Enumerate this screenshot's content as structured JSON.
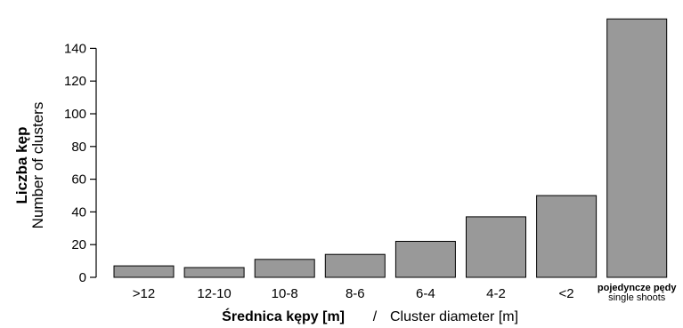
{
  "chart_data": {
    "type": "bar",
    "categories": [
      ">12",
      "12-10",
      "10-8",
      "8-6",
      "6-4",
      "4-2",
      "<2",
      "pojedyncze pędy"
    ],
    "category_sublabel": {
      "pojedyncze pędy": "single shoots"
    },
    "values": [
      7,
      6,
      11,
      14,
      22,
      37,
      50,
      158
    ],
    "ylabel": "Liczba kęp",
    "ylabel_secondary": "Number of clusters",
    "xlabel": "Średnica kępy [m]",
    "xlabel_separator": "/",
    "xlabel_secondary": "Cluster diameter [m]",
    "yticks": [
      0,
      20,
      40,
      60,
      80,
      100,
      120,
      140
    ],
    "ylim": [
      0,
      158
    ],
    "grid": false,
    "bar_color": "#999999",
    "edge_color": "#000000"
  }
}
